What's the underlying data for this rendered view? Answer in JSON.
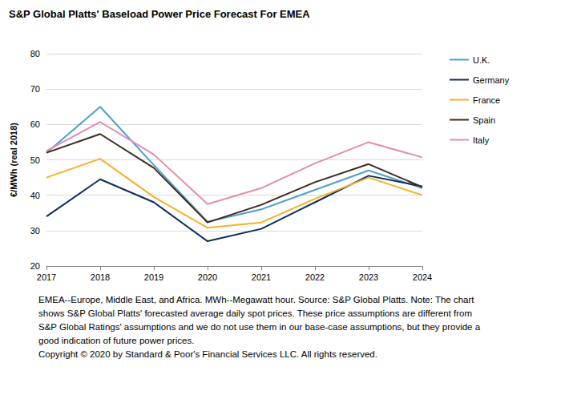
{
  "chart_data": {
    "type": "line",
    "title": "S&P Global Platts' Baseload Power Price Forecast For EMEA",
    "y_label": "€/MWh (real 2018)",
    "categories": [
      "2017",
      "2018",
      "2019",
      "2020",
      "2021",
      "2022",
      "2023",
      "2024"
    ],
    "series": [
      {
        "name": "U.K.",
        "color": "#4d9fcf",
        "values": [
          52,
          65,
          48.5,
          32.5,
          36,
          41.5,
          47,
          42
        ]
      },
      {
        "name": "Germany",
        "color": "#0d2d5a",
        "values": [
          34,
          44.5,
          38,
          27,
          30.5,
          38,
          45.5,
          42.5
        ]
      },
      {
        "name": "France",
        "color": "#f6b127",
        "values": [
          45,
          50.3,
          39.5,
          30.8,
          32.3,
          39,
          45,
          40
        ]
      },
      {
        "name": "Spain",
        "color": "#3e2a1f",
        "values": [
          52,
          57.3,
          47.7,
          32.3,
          37.3,
          43.7,
          48.8,
          42.3
        ]
      },
      {
        "name": "Italy",
        "color": "#e28db1",
        "values": [
          52.5,
          60.7,
          51.5,
          37.5,
          42,
          49,
          55,
          50.7
        ]
      }
    ],
    "ylim": [
      20,
      80
    ],
    "yticks": [
      20,
      30,
      40,
      50,
      60,
      70,
      80
    ],
    "grid": true,
    "legend": "right",
    "notes": [
      "EMEA--Europe, Middle East, and Africa. MWh--Megawatt hour. Source: S&P Global Platts. Note: The chart",
      "shows S&P Global Platts' forecasted average daily spot prices. These price assumptions are different from",
      "S&P Global Ratings' assumptions and we do not use them in our base-case assumptions, but they provide a",
      "good indication of future power prices.",
      "Copyright © 2020 by Standard & Poor's Financial Services LLC. All rights reserved."
    ]
  }
}
